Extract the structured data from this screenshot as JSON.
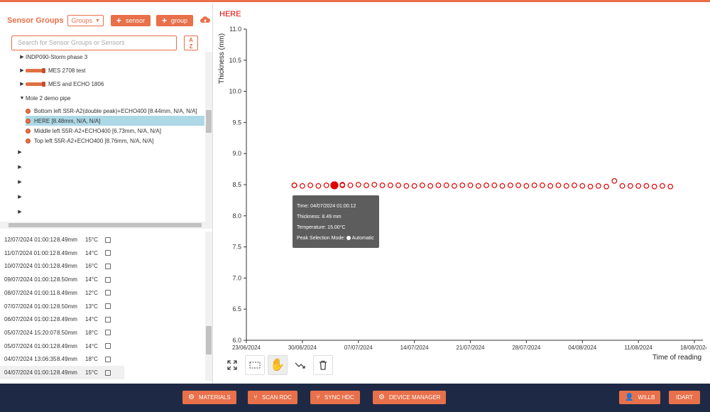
{
  "sidebar": {
    "title": "Sensor Groups",
    "groups_select": "Groups",
    "add_sensor_label": "sensor",
    "add_group_label": "group",
    "search_placeholder": "Search for Sensor Groups or Sensors",
    "sort_label_a": "A",
    "sort_label_z": "Z",
    "tree": [
      {
        "label": "INDP090-Storm phase 3",
        "type": "group",
        "expanded": false
      },
      {
        "label": "MES 2708 test",
        "type": "sensor-group",
        "expanded": false
      },
      {
        "label": "MES and ECHO 1806",
        "type": "sensor-group",
        "expanded": false
      },
      {
        "label": "Mole 2 demo pipe",
        "type": "group",
        "expanded": true
      },
      {
        "label": "Bottom left S5R-A2(double peak)+ECHO400  [8.44mm, N/A, N/A]",
        "type": "sensor"
      },
      {
        "label": "HERE  [8.48mm, N/A, N/A]",
        "type": "sensor",
        "selected": true
      },
      {
        "label": "Middle left S5R-A2+ECHO400  [6.73mm, N/A, N/A]",
        "type": "sensor"
      },
      {
        "label": "Top left S5R-A2+ECHO400  [8.76mm, N/A, N/A]",
        "type": "sensor"
      }
    ]
  },
  "readings": [
    {
      "date": "12/07/2024 01:00:12",
      "thickness": "8.49mm",
      "temp": "15°C"
    },
    {
      "date": "11/07/2024 01:00:12",
      "thickness": "8.49mm",
      "temp": "14°C"
    },
    {
      "date": "10/07/2024 01:00:12",
      "thickness": "8.49mm",
      "temp": "16°C"
    },
    {
      "date": "09/07/2024 01:00:12",
      "thickness": "8.50mm",
      "temp": "14°C"
    },
    {
      "date": "08/07/2024 01:00:11",
      "thickness": "8.49mm",
      "temp": "12°C"
    },
    {
      "date": "07/07/2024 01:00:12",
      "thickness": "8.50mm",
      "temp": "13°C"
    },
    {
      "date": "06/07/2024 01:00:12",
      "thickness": "8.49mm",
      "temp": "14°C"
    },
    {
      "date": "05/07/2024 15:20:07",
      "thickness": "8.50mm",
      "temp": "18°C"
    },
    {
      "date": "05/07/2024 01:00:12",
      "thickness": "8.49mm",
      "temp": "14°C"
    },
    {
      "date": "04/07/2024 13:06:35",
      "thickness": "8.49mm",
      "temp": "18°C"
    },
    {
      "date": "04/07/2024 01:00:12",
      "thickness": "8.49mm",
      "temp": "15°C"
    }
  ],
  "chart": {
    "title": "HERE",
    "xlabel": "Time of reading",
    "ylabel": "Thickness (mm)",
    "tooltip": {
      "time": "Time: 04/07/2024 01:00:12",
      "thickness": "Thickness: 8.49 mm",
      "temperature": "Temperature: 15.00°C",
      "peak_mode_label": "Peak Selection Mode:",
      "peak_mode_value": "Automatic"
    }
  },
  "chart_data": {
    "type": "scatter",
    "title": "HERE",
    "xlabel": "Time of reading",
    "ylabel": "Thickness (mm)",
    "ylim": [
      6.0,
      11.0
    ],
    "y_ticks": [
      "6.0",
      "6.5",
      "7.0",
      "7.5",
      "8.0",
      "8.5",
      "9.0",
      "9.5",
      "10.0",
      "10.5",
      "11.0"
    ],
    "x_ticks": [
      "23/06/2024",
      "30/06/2024",
      "07/07/2024",
      "14/07/2024",
      "21/07/2024",
      "28/07/2024",
      "04/08/2024",
      "11/08/2024",
      "18/08/2024"
    ],
    "x_range": [
      "2024-06-23",
      "2024-08-18"
    ],
    "color": "#e00000",
    "highlight_x": "2024-07-04",
    "points": [
      {
        "x": "2024-06-29",
        "y": 8.49
      },
      {
        "x": "2024-06-29",
        "y": 8.49
      },
      {
        "x": "2024-06-30",
        "y": 8.48
      },
      {
        "x": "2024-07-01",
        "y": 8.49
      },
      {
        "x": "2024-07-02",
        "y": 8.48
      },
      {
        "x": "2024-07-03",
        "y": 8.49
      },
      {
        "x": "2024-07-04",
        "y": 8.49
      },
      {
        "x": "2024-07-05",
        "y": 8.49
      },
      {
        "x": "2024-07-05",
        "y": 8.5
      },
      {
        "x": "2024-07-06",
        "y": 8.49
      },
      {
        "x": "2024-07-07",
        "y": 8.5
      },
      {
        "x": "2024-07-08",
        "y": 8.49
      },
      {
        "x": "2024-07-09",
        "y": 8.5
      },
      {
        "x": "2024-07-10",
        "y": 8.49
      },
      {
        "x": "2024-07-11",
        "y": 8.49
      },
      {
        "x": "2024-07-12",
        "y": 8.49
      },
      {
        "x": "2024-07-13",
        "y": 8.48
      },
      {
        "x": "2024-07-14",
        "y": 8.48
      },
      {
        "x": "2024-07-15",
        "y": 8.49
      },
      {
        "x": "2024-07-16",
        "y": 8.48
      },
      {
        "x": "2024-07-17",
        "y": 8.49
      },
      {
        "x": "2024-07-18",
        "y": 8.49
      },
      {
        "x": "2024-07-19",
        "y": 8.48
      },
      {
        "x": "2024-07-20",
        "y": 8.49
      },
      {
        "x": "2024-07-21",
        "y": 8.49
      },
      {
        "x": "2024-07-22",
        "y": 8.48
      },
      {
        "x": "2024-07-23",
        "y": 8.49
      },
      {
        "x": "2024-07-24",
        "y": 8.49
      },
      {
        "x": "2024-07-25",
        "y": 8.48
      },
      {
        "x": "2024-07-26",
        "y": 8.49
      },
      {
        "x": "2024-07-27",
        "y": 8.49
      },
      {
        "x": "2024-07-28",
        "y": 8.48
      },
      {
        "x": "2024-07-29",
        "y": 8.49
      },
      {
        "x": "2024-07-30",
        "y": 8.49
      },
      {
        "x": "2024-07-31",
        "y": 8.48
      },
      {
        "x": "2024-08-01",
        "y": 8.49
      },
      {
        "x": "2024-08-02",
        "y": 8.48
      },
      {
        "x": "2024-08-03",
        "y": 8.49
      },
      {
        "x": "2024-08-04",
        "y": 8.48
      },
      {
        "x": "2024-08-05",
        "y": 8.47
      },
      {
        "x": "2024-08-06",
        "y": 8.48
      },
      {
        "x": "2024-08-07",
        "y": 8.47
      },
      {
        "x": "2024-08-08",
        "y": 8.56
      },
      {
        "x": "2024-08-09",
        "y": 8.48
      },
      {
        "x": "2024-08-10",
        "y": 8.48
      },
      {
        "x": "2024-08-11",
        "y": 8.48
      },
      {
        "x": "2024-08-12",
        "y": 8.48
      },
      {
        "x": "2024-08-13",
        "y": 8.47
      },
      {
        "x": "2024-08-14",
        "y": 8.48
      },
      {
        "x": "2024-08-15",
        "y": 8.47
      }
    ]
  },
  "toolbar": {
    "fit_icon": "expand-icon",
    "select_icon": "box-select-icon",
    "pan_icon": "hand-icon",
    "trend_icon": "trend-icon",
    "delete_icon": "trash-icon"
  },
  "bottom": {
    "materials": "MATERIALS",
    "scan_rdc": "SCAN RDC",
    "sync_hdc": "SYNC HDC",
    "device_manager": "DEVICE MANAGER",
    "user": "WILLB",
    "idart": "IDART"
  },
  "colors": {
    "accent": "#e8704a",
    "navy": "#1e2a45",
    "selected": "#add8e6",
    "series": "#e00000"
  }
}
